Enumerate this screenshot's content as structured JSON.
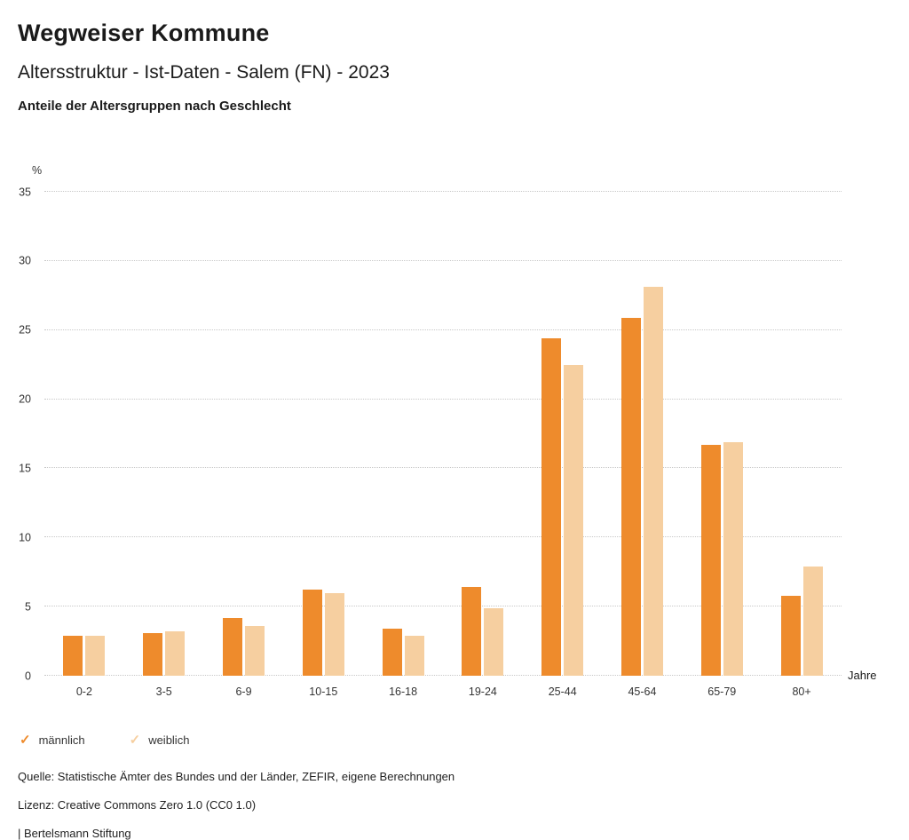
{
  "header": {
    "title": "Wegweiser Kommune",
    "subtitle": "Altersstruktur - Ist-Daten - Salem (FN) - 2023",
    "chart_heading": "Anteile der Altersgruppen nach Geschlecht"
  },
  "chart_data": {
    "type": "bar",
    "title": "Anteile der Altersgruppen nach Geschlecht",
    "categories": [
      "0-2",
      "3-5",
      "6-9",
      "10-15",
      "16-18",
      "19-24",
      "25-44",
      "45-64",
      "65-79",
      "80+"
    ],
    "series": [
      {
        "name": "männlich",
        "color": "#EE8B2C",
        "values": [
          2.9,
          3.1,
          4.2,
          6.2,
          3.4,
          6.4,
          24.4,
          25.9,
          16.7,
          5.8
        ]
      },
      {
        "name": "weiblich",
        "color": "#F6CFA0",
        "values": [
          2.9,
          3.2,
          3.6,
          6.0,
          2.9,
          4.9,
          22.5,
          28.1,
          16.9,
          7.9
        ]
      }
    ],
    "xlabel": "Jahre",
    "ylabel": "%",
    "ylim": [
      0,
      35
    ],
    "ytick_step": 5,
    "yticks": [
      0,
      5,
      10,
      15,
      20,
      25,
      30,
      35
    ],
    "grid": true,
    "gridline_style": "dotted",
    "legend_position": "bottom"
  },
  "axes": {
    "y_unit": "%",
    "x_unit": "Jahre"
  },
  "legend": {
    "marker": "✓",
    "items": [
      {
        "label": "männlich",
        "color": "#EE8B2C"
      },
      {
        "label": "weiblich",
        "color": "#F6CFA0"
      }
    ]
  },
  "footer": {
    "source": "Quelle: Statistische Ämter des Bundes und der Länder, ZEFIR, eigene Berechnungen",
    "license": "Lizenz: Creative Commons Zero 1.0 (CC0 1.0)",
    "attribution": "| Bertelsmann Stiftung"
  }
}
